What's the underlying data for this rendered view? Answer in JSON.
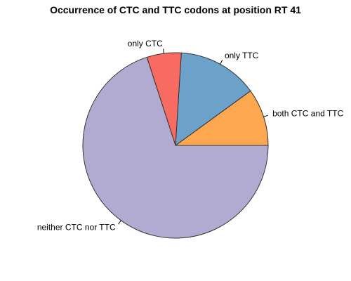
{
  "chart_data": {
    "type": "pie",
    "title": "Occurrence of CTC and TTC codons at position RT 41",
    "slices": [
      {
        "label": "both CTC and TTC",
        "value": 10,
        "color": "#fda751"
      },
      {
        "label": "only TTC",
        "value": 14,
        "color": "#6ca2ca"
      },
      {
        "label": "only CTC",
        "value": 6,
        "color": "#f86b63"
      },
      {
        "label": "neither CTC nor TTC",
        "value": 70,
        "color": "#b1abd2"
      }
    ],
    "direction": "counterclockwise",
    "start": "right",
    "outline_color": "#333333"
  }
}
